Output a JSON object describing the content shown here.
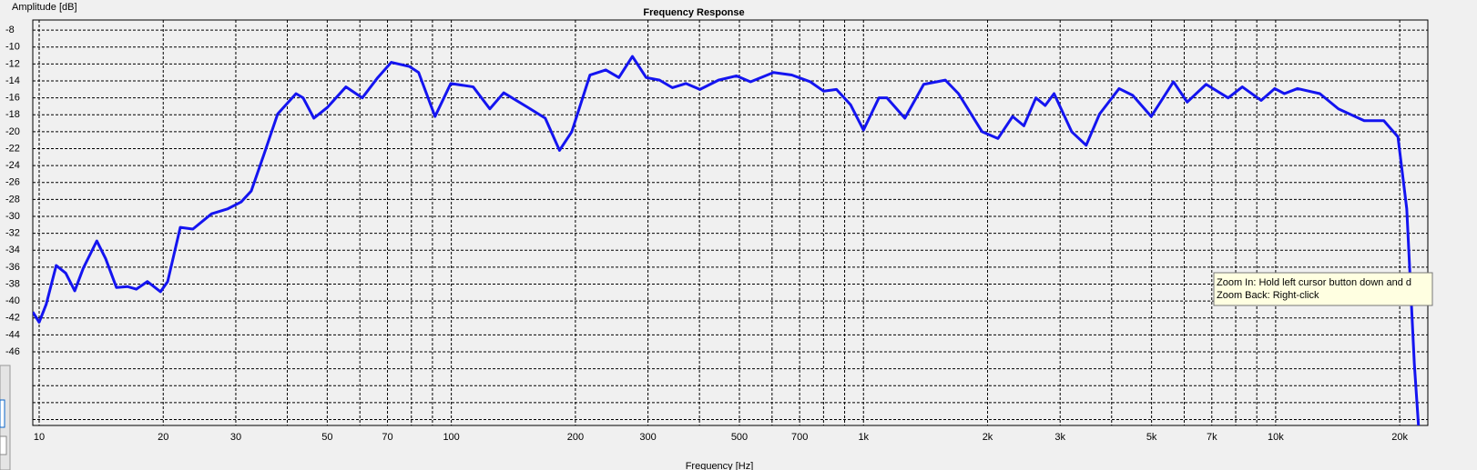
{
  "chart_data": {
    "type": "line",
    "title": "Frequency Response",
    "y_label": "Amplitude [dB]",
    "x_label": "Frequency [Hz]",
    "x_log": true,
    "grid": true,
    "xlim": [
      9.65,
      23400
    ],
    "ylim": [
      -54.7,
      -6.8
    ],
    "yticks": [
      -8,
      -10,
      -12,
      -14,
      -16,
      -18,
      -20,
      -22,
      -24,
      -26,
      -28,
      -30,
      -32,
      -34,
      -36,
      -38,
      -40,
      -42,
      -44,
      -46
    ],
    "yticks_unlabeled": [
      -48,
      -50,
      -52,
      -54
    ],
    "xticks": [
      10,
      20,
      30,
      50,
      70,
      100,
      200,
      300,
      500,
      700,
      {
        "value": 1000,
        "label": "1k"
      },
      {
        "value": 2000,
        "label": "2k"
      },
      {
        "value": 3000,
        "label": "3k"
      },
      {
        "value": 5000,
        "label": "5k"
      },
      {
        "value": 7000,
        "label": "7k"
      },
      {
        "value": 10000,
        "label": "10k"
      },
      {
        "value": 20000,
        "label": "20k"
      }
    ],
    "xticks_minor": [
      40,
      60,
      80,
      90,
      400,
      600,
      800,
      900,
      4000,
      6000,
      8000,
      9000
    ],
    "tooltip": [
      "Zoom In:   Hold left cursor button down and d",
      "Zoom Back: Right-click"
    ],
    "series": [
      {
        "name": "Frequency Response",
        "color": "#1414f0",
        "x": [
          9.65,
          10,
          10.4,
          11.0,
          11.6,
          12.2,
          12.8,
          13.8,
          14.5,
          15.4,
          16.4,
          17.2,
          18.3,
          19.7,
          20.5,
          22.0,
          23.6,
          26.2,
          28.7,
          30.9,
          32.7,
          35.1,
          37.9,
          42.0,
          43.7,
          46.4,
          50.1,
          55.5,
          60.8,
          66.3,
          71.5,
          79.2,
          83.3,
          91.3,
          99.7,
          113,
          124,
          134,
          153,
          169,
          183,
          196,
          217,
          237,
          255,
          275,
          297,
          320,
          344,
          371,
          401,
          445,
          492,
          532,
          605,
          670,
          743,
          800,
          860,
          930,
          1000,
          1090,
          1140,
          1260,
          1400,
          1580,
          1700,
          1940,
          2120,
          2300,
          2450,
          2620,
          2760,
          2900,
          3200,
          3470,
          3740,
          4170,
          4500,
          4990,
          5650,
          6100,
          6780,
          7670,
          8300,
          9220,
          9950,
          10500,
          11300,
          12800,
          14200,
          16400,
          18300,
          19800,
          20800,
          21700,
          22300
        ],
        "values": [
          -41.3,
          -42.5,
          -40.4,
          -35.8,
          -36.7,
          -38.8,
          -36.1,
          -32.9,
          -35.0,
          -38.4,
          -38.3,
          -38.6,
          -37.7,
          -38.9,
          -37.7,
          -31.3,
          -31.5,
          -29.7,
          -29.1,
          -28.3,
          -27.0,
          -22.7,
          -17.9,
          -15.5,
          -16.0,
          -18.4,
          -17.1,
          -14.7,
          -16.0,
          -13.6,
          -11.8,
          -12.3,
          -13.0,
          -18.2,
          -14.3,
          -14.7,
          -17.3,
          -15.4,
          -17.1,
          -18.4,
          -22.2,
          -20.0,
          -13.3,
          -12.7,
          -13.6,
          -11.1,
          -13.6,
          -13.9,
          -14.8,
          -14.3,
          -15.0,
          -13.9,
          -13.4,
          -14.1,
          -13.0,
          -13.3,
          -14.1,
          -15.2,
          -15.0,
          -16.8,
          -19.8,
          -16.0,
          -16.0,
          -18.4,
          -14.4,
          -13.9,
          -15.5,
          -20.0,
          -20.8,
          -18.2,
          -19.3,
          -16.0,
          -16.9,
          -15.5,
          -20.0,
          -21.6,
          -17.9,
          -14.9,
          -15.7,
          -18.2,
          -14.1,
          -16.5,
          -14.4,
          -16.0,
          -14.7,
          -16.3,
          -14.9,
          -15.5,
          -14.9,
          -15.5,
          -17.3,
          -18.7,
          -18.7,
          -20.6,
          -29.1,
          -47.4,
          -56.0
        ]
      }
    ]
  }
}
